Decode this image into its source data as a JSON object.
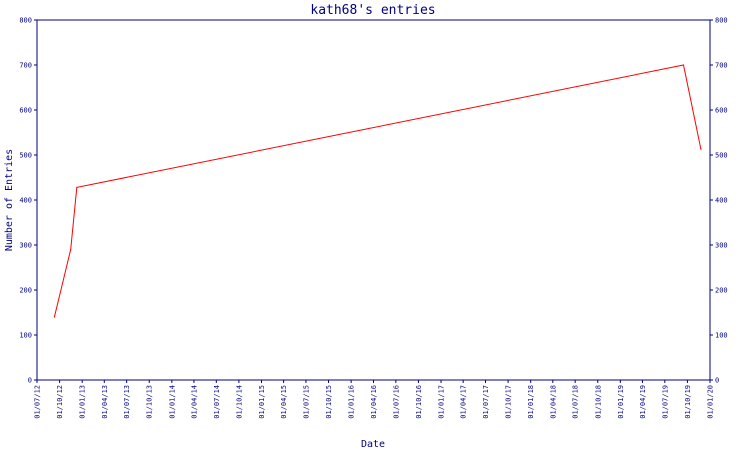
{
  "chart_data": {
    "type": "line",
    "title": "kath68's entries",
    "xlabel": "Date",
    "ylabel": "Number of Entries",
    "ylim": [
      0,
      800
    ],
    "y_ticks": [
      0,
      100,
      200,
      300,
      400,
      500,
      600,
      700,
      800
    ],
    "x_tick_labels": [
      "01/07/12",
      "01/10/12",
      "01/01/13",
      "01/04/13",
      "01/07/13",
      "01/10/13",
      "01/01/14",
      "01/04/14",
      "01/07/14",
      "01/10/14",
      "01/01/15",
      "01/04/15",
      "01/07/15",
      "01/10/15",
      "01/01/16",
      "01/04/16",
      "01/07/16",
      "01/10/16",
      "01/01/17",
      "01/04/17",
      "01/07/17",
      "01/10/17",
      "01/01/18",
      "01/04/18",
      "01/07/18",
      "01/10/18",
      "01/01/19",
      "01/04/19",
      "01/07/19",
      "01/10/19",
      "01/01/20"
    ],
    "xlim": [
      "2012-07-01",
      "2020-01-01"
    ],
    "y_axis_both_sides": true,
    "grid": false,
    "series": [
      {
        "color": "#ff0000",
        "points": [
          {
            "x": "2012-09-10",
            "y": 140
          },
          {
            "x": "2012-11-15",
            "y": 290
          },
          {
            "x": "2012-12-10",
            "y": 428
          },
          {
            "x": "2019-09-15",
            "y": 700
          },
          {
            "x": "2019-11-25",
            "y": 513
          }
        ]
      }
    ]
  }
}
